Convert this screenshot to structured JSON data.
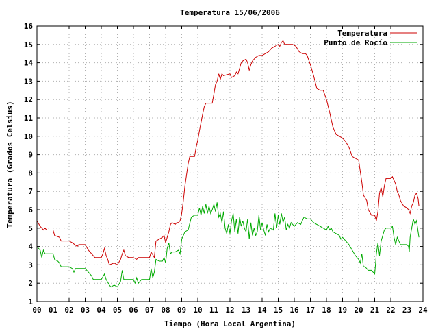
{
  "chart_data": {
    "type": "line",
    "title": "Temperatura 15/06/2006",
    "xlabel": "Tiempo (Hora Local Argentina)",
    "ylabel": "Temperatura (Grados Celsius)",
    "xlim": [
      0,
      24
    ],
    "ylim": [
      1,
      16
    ],
    "xticks": [
      0,
      1,
      2,
      3,
      4,
      5,
      6,
      7,
      8,
      9,
      10,
      11,
      12,
      13,
      14,
      15,
      16,
      17,
      18,
      19,
      20,
      21,
      22,
      23,
      24
    ],
    "xtick_labels": [
      "00",
      "01",
      "02",
      "03",
      "04",
      "05",
      "06",
      "07",
      "08",
      "09",
      "10",
      "11",
      "12",
      "13",
      "14",
      "15",
      "16",
      "17",
      "18",
      "19",
      "20",
      "21",
      "22",
      "23",
      "24"
    ],
    "yticks": [
      1,
      2,
      3,
      4,
      5,
      6,
      7,
      8,
      9,
      10,
      11,
      12,
      13,
      14,
      15,
      16
    ],
    "grid": true,
    "legend_position": "top-right",
    "series": [
      {
        "name": "Temperatura",
        "color": "#cc0000",
        "points": [
          [
            0.0,
            5.4
          ],
          [
            0.2,
            5.1
          ],
          [
            0.4,
            4.9
          ],
          [
            0.5,
            5.0
          ],
          [
            0.6,
            4.9
          ],
          [
            1.0,
            4.9
          ],
          [
            1.1,
            4.6
          ],
          [
            1.4,
            4.5
          ],
          [
            1.5,
            4.3
          ],
          [
            2.0,
            4.3
          ],
          [
            2.2,
            4.2
          ],
          [
            2.5,
            4.0
          ],
          [
            2.6,
            4.1
          ],
          [
            3.0,
            4.1
          ],
          [
            3.2,
            3.8
          ],
          [
            3.4,
            3.6
          ],
          [
            3.6,
            3.4
          ],
          [
            4.0,
            3.4
          ],
          [
            4.1,
            3.6
          ],
          [
            4.2,
            3.9
          ],
          [
            4.3,
            3.5
          ],
          [
            4.4,
            3.3
          ],
          [
            4.5,
            3.0
          ],
          [
            4.8,
            3.1
          ],
          [
            5.0,
            3.0
          ],
          [
            5.2,
            3.3
          ],
          [
            5.3,
            3.6
          ],
          [
            5.4,
            3.8
          ],
          [
            5.5,
            3.5
          ],
          [
            5.7,
            3.4
          ],
          [
            6.0,
            3.4
          ],
          [
            6.2,
            3.3
          ],
          [
            6.3,
            3.4
          ],
          [
            6.6,
            3.4
          ],
          [
            7.0,
            3.4
          ],
          [
            7.1,
            3.7
          ],
          [
            7.3,
            3.4
          ],
          [
            7.4,
            4.3
          ],
          [
            7.6,
            4.4
          ],
          [
            7.8,
            4.5
          ],
          [
            7.9,
            4.6
          ],
          [
            8.0,
            4.2
          ],
          [
            8.1,
            4.5
          ],
          [
            8.2,
            4.8
          ],
          [
            8.3,
            5.2
          ],
          [
            8.4,
            5.3
          ],
          [
            8.6,
            5.2
          ],
          [
            8.7,
            5.3
          ],
          [
            8.8,
            5.3
          ],
          [
            8.9,
            5.4
          ],
          [
            9.0,
            5.8
          ],
          [
            9.1,
            6.5
          ],
          [
            9.2,
            7.3
          ],
          [
            9.4,
            8.5
          ],
          [
            9.5,
            8.9
          ],
          [
            9.8,
            8.9
          ],
          [
            9.9,
            9.4
          ],
          [
            10.0,
            9.8
          ],
          [
            10.1,
            10.3
          ],
          [
            10.3,
            11.2
          ],
          [
            10.4,
            11.6
          ],
          [
            10.5,
            11.8
          ],
          [
            10.9,
            11.8
          ],
          [
            11.0,
            12.3
          ],
          [
            11.1,
            12.8
          ],
          [
            11.2,
            13.0
          ],
          [
            11.3,
            13.4
          ],
          [
            11.4,
            13.1
          ],
          [
            11.5,
            13.4
          ],
          [
            11.6,
            13.3
          ],
          [
            12.0,
            13.4
          ],
          [
            12.1,
            13.2
          ],
          [
            12.3,
            13.3
          ],
          [
            12.4,
            13.5
          ],
          [
            12.5,
            13.4
          ],
          [
            12.7,
            14.0
          ],
          [
            12.8,
            14.1
          ],
          [
            13.0,
            14.2
          ],
          [
            13.1,
            14.0
          ],
          [
            13.2,
            13.6
          ],
          [
            13.3,
            13.9
          ],
          [
            13.4,
            14.1
          ],
          [
            13.6,
            14.3
          ],
          [
            13.8,
            14.4
          ],
          [
            14.0,
            14.4
          ],
          [
            14.2,
            14.5
          ],
          [
            14.4,
            14.6
          ],
          [
            14.6,
            14.8
          ],
          [
            14.8,
            14.9
          ],
          [
            15.0,
            15.0
          ],
          [
            15.1,
            14.9
          ],
          [
            15.2,
            15.1
          ],
          [
            15.3,
            15.2
          ],
          [
            15.4,
            15.0
          ],
          [
            15.6,
            15.0
          ],
          [
            15.9,
            15.0
          ],
          [
            16.1,
            14.9
          ],
          [
            16.3,
            14.6
          ],
          [
            16.5,
            14.5
          ],
          [
            16.7,
            14.5
          ],
          [
            16.8,
            14.4
          ],
          [
            17.0,
            13.9
          ],
          [
            17.2,
            13.3
          ],
          [
            17.4,
            12.6
          ],
          [
            17.6,
            12.5
          ],
          [
            17.8,
            12.5
          ],
          [
            18.0,
            12.0
          ],
          [
            18.2,
            11.3
          ],
          [
            18.4,
            10.5
          ],
          [
            18.6,
            10.1
          ],
          [
            18.8,
            10.0
          ],
          [
            19.0,
            9.9
          ],
          [
            19.2,
            9.7
          ],
          [
            19.4,
            9.4
          ],
          [
            19.6,
            8.9
          ],
          [
            19.8,
            8.8
          ],
          [
            20.0,
            8.7
          ],
          [
            20.2,
            7.5
          ],
          [
            20.3,
            6.8
          ],
          [
            20.5,
            6.5
          ],
          [
            20.6,
            6.0
          ],
          [
            20.8,
            5.7
          ],
          [
            21.0,
            5.7
          ],
          [
            21.1,
            5.4
          ],
          [
            21.2,
            5.9
          ],
          [
            21.3,
            6.9
          ],
          [
            21.4,
            7.2
          ],
          [
            21.5,
            6.7
          ],
          [
            21.6,
            7.3
          ],
          [
            21.7,
            7.7
          ],
          [
            22.0,
            7.7
          ],
          [
            22.1,
            7.8
          ],
          [
            22.3,
            7.4
          ],
          [
            22.4,
            7.0
          ],
          [
            22.5,
            6.8
          ],
          [
            22.6,
            6.5
          ],
          [
            22.8,
            6.2
          ],
          [
            23.0,
            6.1
          ],
          [
            23.1,
            6.0
          ],
          [
            23.2,
            5.8
          ],
          [
            23.3,
            6.2
          ],
          [
            23.4,
            6.4
          ],
          [
            23.5,
            6.8
          ],
          [
            23.6,
            6.9
          ],
          [
            23.7,
            6.6
          ],
          [
            23.75,
            6.2
          ]
        ]
      },
      {
        "name": "Punto de Rocío",
        "color": "#00aa00",
        "points": [
          [
            0.0,
            4.0
          ],
          [
            0.2,
            3.8
          ],
          [
            0.3,
            3.4
          ],
          [
            0.4,
            3.8
          ],
          [
            0.5,
            3.6
          ],
          [
            1.0,
            3.6
          ],
          [
            1.1,
            3.3
          ],
          [
            1.3,
            3.2
          ],
          [
            1.4,
            3.1
          ],
          [
            1.5,
            2.9
          ],
          [
            2.0,
            2.9
          ],
          [
            2.2,
            2.8
          ],
          [
            2.3,
            2.6
          ],
          [
            2.4,
            2.8
          ],
          [
            3.0,
            2.8
          ],
          [
            3.2,
            2.6
          ],
          [
            3.4,
            2.4
          ],
          [
            3.5,
            2.2
          ],
          [
            4.0,
            2.2
          ],
          [
            4.2,
            2.5
          ],
          [
            4.3,
            2.2
          ],
          [
            4.5,
            1.9
          ],
          [
            4.6,
            1.8
          ],
          [
            4.8,
            1.9
          ],
          [
            5.0,
            1.8
          ],
          [
            5.2,
            2.1
          ],
          [
            5.3,
            2.7
          ],
          [
            5.4,
            2.2
          ],
          [
            5.6,
            2.2
          ],
          [
            6.0,
            2.2
          ],
          [
            6.1,
            2.0
          ],
          [
            6.2,
            2.3
          ],
          [
            6.3,
            2.0
          ],
          [
            6.5,
            2.2
          ],
          [
            6.8,
            2.2
          ],
          [
            7.0,
            2.2
          ],
          [
            7.1,
            2.8
          ],
          [
            7.2,
            2.3
          ],
          [
            7.3,
            2.6
          ],
          [
            7.4,
            3.3
          ],
          [
            7.6,
            3.2
          ],
          [
            7.8,
            3.2
          ],
          [
            7.9,
            3.4
          ],
          [
            8.0,
            3.1
          ],
          [
            8.1,
            3.9
          ],
          [
            8.2,
            4.2
          ],
          [
            8.3,
            3.6
          ],
          [
            8.4,
            3.7
          ],
          [
            8.6,
            3.7
          ],
          [
            8.8,
            3.8
          ],
          [
            8.9,
            3.6
          ],
          [
            9.0,
            4.4
          ],
          [
            9.2,
            4.8
          ],
          [
            9.4,
            4.9
          ],
          [
            9.6,
            5.6
          ],
          [
            9.8,
            5.7
          ],
          [
            10.0,
            5.7
          ],
          [
            10.1,
            6.1
          ],
          [
            10.2,
            5.7
          ],
          [
            10.3,
            6.2
          ],
          [
            10.4,
            5.8
          ],
          [
            10.5,
            6.3
          ],
          [
            10.6,
            5.8
          ],
          [
            10.7,
            6.2
          ],
          [
            10.8,
            5.8
          ],
          [
            10.9,
            6.0
          ],
          [
            11.0,
            6.3
          ],
          [
            11.1,
            5.9
          ],
          [
            11.2,
            6.4
          ],
          [
            11.3,
            5.6
          ],
          [
            11.4,
            5.8
          ],
          [
            11.5,
            5.3
          ],
          [
            11.6,
            5.9
          ],
          [
            11.7,
            5.0
          ],
          [
            11.8,
            4.7
          ],
          [
            11.9,
            5.2
          ],
          [
            12.0,
            4.7
          ],
          [
            12.1,
            5.4
          ],
          [
            12.2,
            5.8
          ],
          [
            12.3,
            4.8
          ],
          [
            12.4,
            5.5
          ],
          [
            12.5,
            4.7
          ],
          [
            12.6,
            5.6
          ],
          [
            12.7,
            5.1
          ],
          [
            12.8,
            5.4
          ],
          [
            12.9,
            5.0
          ],
          [
            13.0,
            4.8
          ],
          [
            13.1,
            5.5
          ],
          [
            13.2,
            4.4
          ],
          [
            13.3,
            5.3
          ],
          [
            13.4,
            4.6
          ],
          [
            13.5,
            5.0
          ],
          [
            13.6,
            4.6
          ],
          [
            13.7,
            4.8
          ],
          [
            13.8,
            5.7
          ],
          [
            13.9,
            4.9
          ],
          [
            14.0,
            5.3
          ],
          [
            14.1,
            4.9
          ],
          [
            14.2,
            4.6
          ],
          [
            14.3,
            5.2
          ],
          [
            14.4,
            4.8
          ],
          [
            14.5,
            5.0
          ],
          [
            14.7,
            4.9
          ],
          [
            14.8,
            5.8
          ],
          [
            14.9,
            5.0
          ],
          [
            15.0,
            5.7
          ],
          [
            15.1,
            5.2
          ],
          [
            15.2,
            5.8
          ],
          [
            15.3,
            5.3
          ],
          [
            15.4,
            5.6
          ],
          [
            15.5,
            4.9
          ],
          [
            15.6,
            5.2
          ],
          [
            15.7,
            5.0
          ],
          [
            15.8,
            5.3
          ],
          [
            16.0,
            5.1
          ],
          [
            16.2,
            5.3
          ],
          [
            16.4,
            5.2
          ],
          [
            16.6,
            5.6
          ],
          [
            16.8,
            5.5
          ],
          [
            17.0,
            5.5
          ],
          [
            17.2,
            5.3
          ],
          [
            17.4,
            5.2
          ],
          [
            17.6,
            5.1
          ],
          [
            17.8,
            5.0
          ],
          [
            18.0,
            4.9
          ],
          [
            18.1,
            5.1
          ],
          [
            18.2,
            4.9
          ],
          [
            18.3,
            5.0
          ],
          [
            18.4,
            4.8
          ],
          [
            18.6,
            4.7
          ],
          [
            18.8,
            4.6
          ],
          [
            18.9,
            4.4
          ],
          [
            19.0,
            4.5
          ],
          [
            19.2,
            4.3
          ],
          [
            19.4,
            4.1
          ],
          [
            19.6,
            3.8
          ],
          [
            19.8,
            3.5
          ],
          [
            20.0,
            3.3
          ],
          [
            20.1,
            3.1
          ],
          [
            20.2,
            3.6
          ],
          [
            20.3,
            2.9
          ],
          [
            20.4,
            2.9
          ],
          [
            20.6,
            2.7
          ],
          [
            20.8,
            2.7
          ],
          [
            20.9,
            2.6
          ],
          [
            21.0,
            2.5
          ],
          [
            21.1,
            3.6
          ],
          [
            21.2,
            4.2
          ],
          [
            21.3,
            3.5
          ],
          [
            21.4,
            4.3
          ],
          [
            21.5,
            4.6
          ],
          [
            21.6,
            4.9
          ],
          [
            21.7,
            5.0
          ],
          [
            22.0,
            5.0
          ],
          [
            22.1,
            5.1
          ],
          [
            22.2,
            4.5
          ],
          [
            22.3,
            4.1
          ],
          [
            22.4,
            4.5
          ],
          [
            22.5,
            4.3
          ],
          [
            22.6,
            4.1
          ],
          [
            23.0,
            4.1
          ],
          [
            23.1,
            4.0
          ],
          [
            23.15,
            3.7
          ],
          [
            23.2,
            4.5
          ],
          [
            23.3,
            5.0
          ],
          [
            23.4,
            5.5
          ],
          [
            23.5,
            5.2
          ],
          [
            23.6,
            5.4
          ],
          [
            23.7,
            4.8
          ],
          [
            23.75,
            4.5
          ]
        ]
      }
    ]
  }
}
